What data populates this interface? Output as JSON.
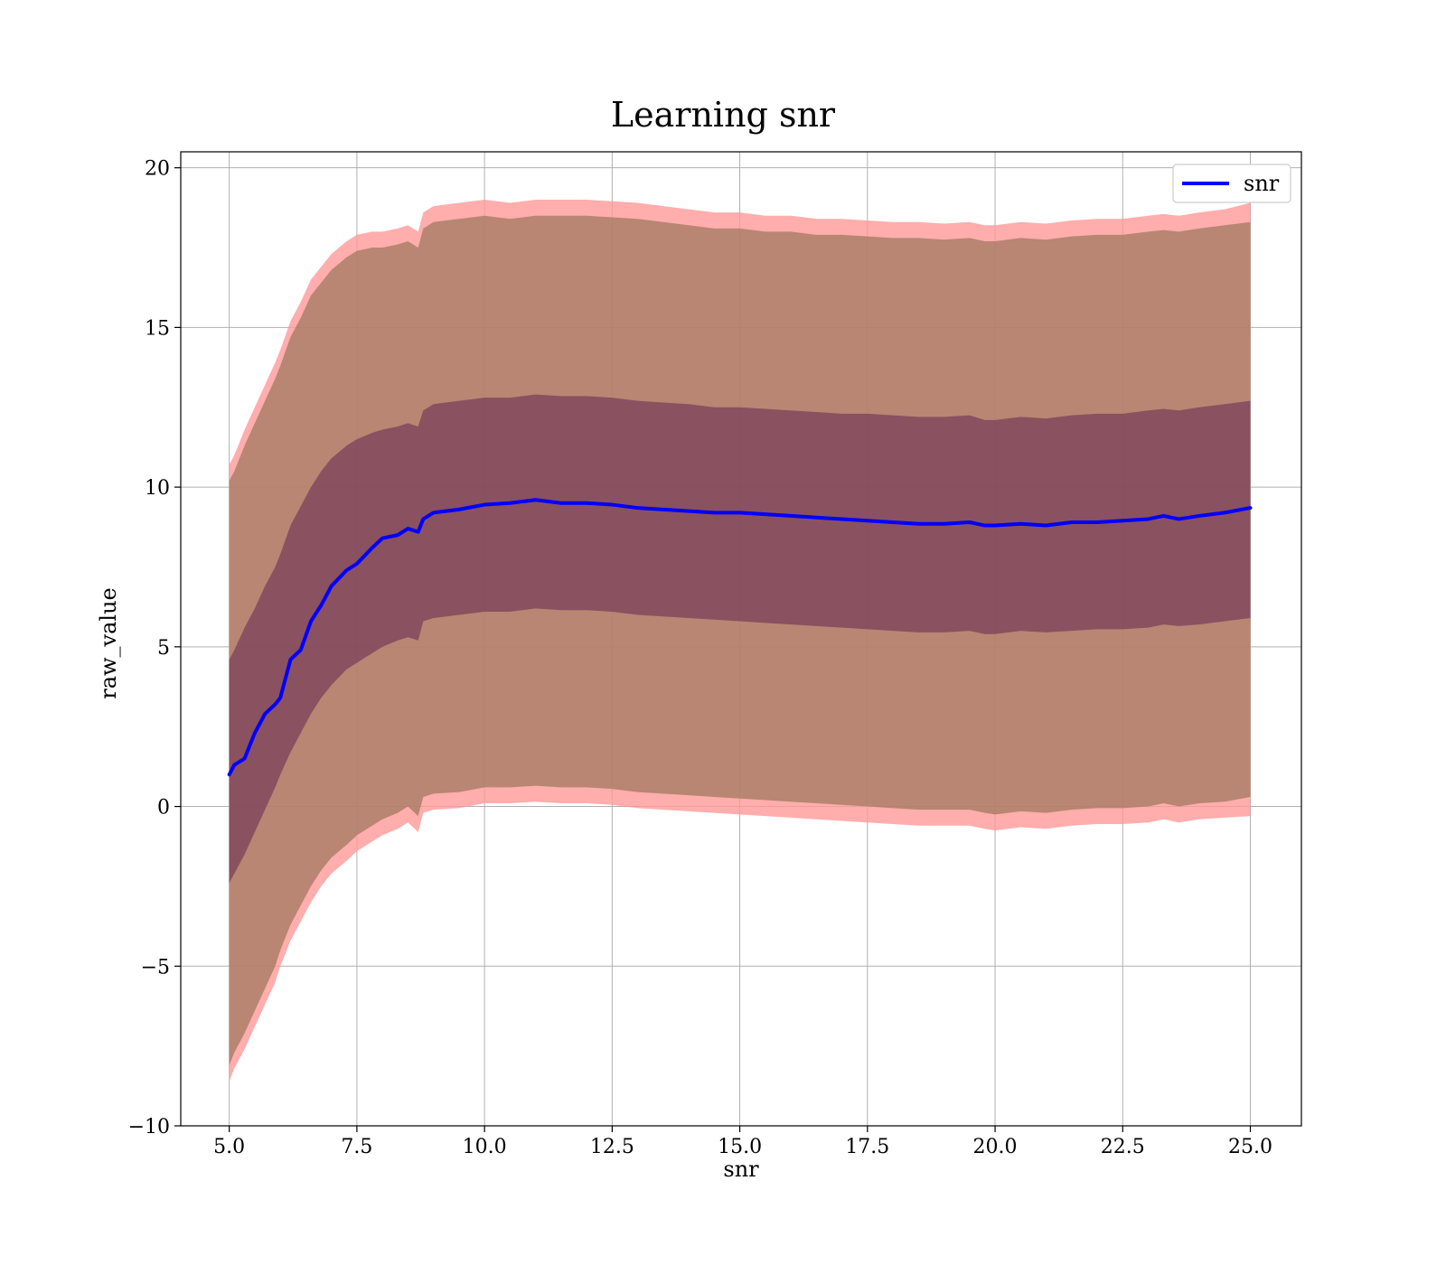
{
  "chart_data": {
    "type": "line",
    "title": "Learning snr",
    "xlabel": "snr",
    "ylabel": "raw_value",
    "xlim": [
      4.05,
      26.0
    ],
    "ylim": [
      -10.0,
      20.5
    ],
    "xticks": [
      5.0,
      7.5,
      10.0,
      12.5,
      15.0,
      17.5,
      20.0,
      22.5,
      25.0
    ],
    "xtick_labels": [
      "5.0",
      "7.5",
      "10.0",
      "12.5",
      "15.0",
      "17.5",
      "20.0",
      "22.5",
      "25.0"
    ],
    "yticks": [
      -10,
      -5,
      0,
      5,
      10,
      15,
      20
    ],
    "ytick_labels": [
      "−10",
      "−5",
      "0",
      "5",
      "10",
      "15",
      "20"
    ],
    "grid": true,
    "legend_position": "top-right",
    "colors": {
      "line": "#0000ff",
      "outer_band": "#ff9999",
      "middle_band": "#a07a5f",
      "inner_band": "#6b2e55",
      "grid": "#b0b0b0"
    },
    "series": [
      {
        "name": "snr",
        "x": [
          5.0,
          5.1,
          5.3,
          5.5,
          5.7,
          5.9,
          6.0,
          6.2,
          6.4,
          6.6,
          6.8,
          7.0,
          7.3,
          7.5,
          7.8,
          8.0,
          8.3,
          8.5,
          8.7,
          8.8,
          9.0,
          9.5,
          10.0,
          10.5,
          11.0,
          11.5,
          12.0,
          12.5,
          13.0,
          13.5,
          14.0,
          14.5,
          15.0,
          15.5,
          16.0,
          16.5,
          17.0,
          17.5,
          18.0,
          18.5,
          19.0,
          19.5,
          19.8,
          20.0,
          20.5,
          21.0,
          21.5,
          22.0,
          22.5,
          23.0,
          23.3,
          23.6,
          24.0,
          24.5,
          25.0
        ],
        "values": [
          1.0,
          1.3,
          1.5,
          2.3,
          2.9,
          3.2,
          3.4,
          4.6,
          4.9,
          5.8,
          6.3,
          6.9,
          7.4,
          7.6,
          8.1,
          8.4,
          8.5,
          8.7,
          8.6,
          9.0,
          9.2,
          9.3,
          9.45,
          9.5,
          9.6,
          9.5,
          9.5,
          9.45,
          9.35,
          9.3,
          9.25,
          9.2,
          9.2,
          9.15,
          9.1,
          9.05,
          9.0,
          8.95,
          8.9,
          8.85,
          8.85,
          8.9,
          8.8,
          8.8,
          8.85,
          8.8,
          8.9,
          8.9,
          8.95,
          9.0,
          9.1,
          9.0,
          9.1,
          9.2,
          9.35
        ]
      }
    ],
    "bands": [
      {
        "label": "outer",
        "upper": [
          10.7,
          11.0,
          11.8,
          12.5,
          13.2,
          13.9,
          14.3,
          15.2,
          15.8,
          16.5,
          16.9,
          17.3,
          17.7,
          17.9,
          18.0,
          18.0,
          18.1,
          18.2,
          18.0,
          18.6,
          18.8,
          18.9,
          19.0,
          18.9,
          19.0,
          19.0,
          19.0,
          18.95,
          18.9,
          18.8,
          18.7,
          18.6,
          18.6,
          18.5,
          18.5,
          18.4,
          18.4,
          18.35,
          18.3,
          18.3,
          18.25,
          18.3,
          18.2,
          18.2,
          18.3,
          18.25,
          18.35,
          18.4,
          18.4,
          18.5,
          18.55,
          18.5,
          18.6,
          18.7,
          18.9
        ],
        "lower": [
          -8.6,
          -8.2,
          -7.6,
          -6.9,
          -6.2,
          -5.5,
          -5.0,
          -4.2,
          -3.6,
          -3.0,
          -2.5,
          -2.1,
          -1.7,
          -1.4,
          -1.1,
          -0.9,
          -0.7,
          -0.5,
          -0.8,
          -0.2,
          -0.1,
          -0.05,
          0.1,
          0.1,
          0.15,
          0.1,
          0.1,
          0.05,
          -0.05,
          -0.1,
          -0.15,
          -0.2,
          -0.25,
          -0.3,
          -0.35,
          -0.4,
          -0.45,
          -0.5,
          -0.55,
          -0.6,
          -0.6,
          -0.6,
          -0.7,
          -0.75,
          -0.65,
          -0.7,
          -0.6,
          -0.55,
          -0.55,
          -0.5,
          -0.4,
          -0.5,
          -0.4,
          -0.35,
          -0.3
        ]
      },
      {
        "label": "middle",
        "upper": [
          10.2,
          10.5,
          11.3,
          12.0,
          12.7,
          13.4,
          13.8,
          14.7,
          15.3,
          16.0,
          16.4,
          16.8,
          17.2,
          17.4,
          17.5,
          17.5,
          17.6,
          17.7,
          17.5,
          18.1,
          18.3,
          18.4,
          18.5,
          18.4,
          18.5,
          18.5,
          18.5,
          18.45,
          18.4,
          18.3,
          18.2,
          18.1,
          18.1,
          18.0,
          18.0,
          17.9,
          17.9,
          17.85,
          17.8,
          17.8,
          17.75,
          17.8,
          17.7,
          17.7,
          17.8,
          17.75,
          17.85,
          17.9,
          17.9,
          18.0,
          18.05,
          18.0,
          18.1,
          18.2,
          18.3
        ],
        "lower": [
          -8.1,
          -7.7,
          -7.1,
          -6.4,
          -5.7,
          -5.0,
          -4.5,
          -3.7,
          -3.1,
          -2.5,
          -2.0,
          -1.6,
          -1.2,
          -0.9,
          -0.6,
          -0.4,
          -0.2,
          0.0,
          -0.3,
          0.3,
          0.4,
          0.45,
          0.6,
          0.6,
          0.65,
          0.6,
          0.6,
          0.55,
          0.45,
          0.4,
          0.35,
          0.3,
          0.25,
          0.2,
          0.15,
          0.1,
          0.05,
          0.0,
          -0.05,
          -0.1,
          -0.1,
          -0.1,
          -0.2,
          -0.25,
          -0.15,
          -0.2,
          -0.1,
          -0.05,
          -0.05,
          0.0,
          0.1,
          0.0,
          0.1,
          0.15,
          0.3
        ]
      },
      {
        "label": "inner",
        "upper": [
          4.6,
          4.9,
          5.6,
          6.2,
          6.9,
          7.5,
          7.9,
          8.8,
          9.4,
          10.0,
          10.5,
          10.9,
          11.3,
          11.5,
          11.7,
          11.8,
          11.9,
          12.0,
          11.9,
          12.4,
          12.6,
          12.7,
          12.8,
          12.8,
          12.9,
          12.85,
          12.85,
          12.8,
          12.7,
          12.65,
          12.6,
          12.5,
          12.5,
          12.45,
          12.4,
          12.35,
          12.3,
          12.3,
          12.25,
          12.2,
          12.2,
          12.25,
          12.1,
          12.1,
          12.2,
          12.15,
          12.25,
          12.3,
          12.3,
          12.4,
          12.45,
          12.4,
          12.5,
          12.6,
          12.7
        ],
        "lower": [
          -2.4,
          -2.1,
          -1.5,
          -0.8,
          -0.1,
          0.6,
          1.0,
          1.7,
          2.3,
          2.9,
          3.4,
          3.8,
          4.3,
          4.5,
          4.8,
          5.0,
          5.2,
          5.3,
          5.2,
          5.8,
          5.9,
          6.0,
          6.1,
          6.1,
          6.2,
          6.15,
          6.15,
          6.1,
          6.0,
          5.95,
          5.9,
          5.85,
          5.8,
          5.75,
          5.7,
          5.65,
          5.6,
          5.55,
          5.5,
          5.45,
          5.45,
          5.5,
          5.4,
          5.4,
          5.5,
          5.45,
          5.5,
          5.55,
          5.55,
          5.6,
          5.7,
          5.65,
          5.7,
          5.8,
          5.9
        ]
      }
    ]
  }
}
